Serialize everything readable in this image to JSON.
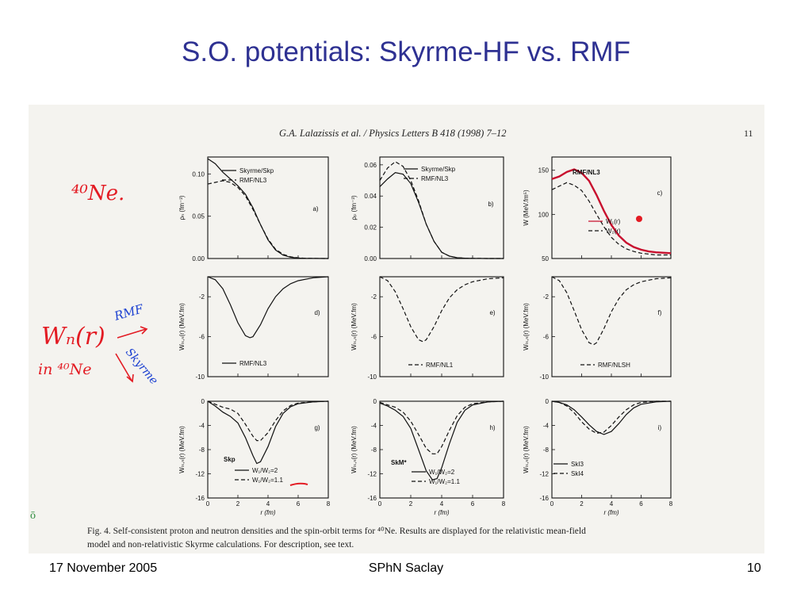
{
  "slide": {
    "title": "S.O. potentials: Skyrme-HF vs. RMF",
    "footer_left": "17 November 2005",
    "footer_center": "SPhN Saclay",
    "footer_right": "10"
  },
  "scan": {
    "header": "G.A. Lalazissis et al. / Physics Letters B 418 (1998) 7–12",
    "page_number": "11",
    "caption_line1": "Fig. 4. Self-consistent proton and neutron densities and the spin-orbit terms for ⁴⁰Ne. Results are displayed for the relativistic mean-field",
    "caption_line2": "model and non-relativistic Skyrme calculations. For description, see text.",
    "handwriting": {
      "nucleus": "⁴⁰Ne.",
      "wn": "Wₙ(r)",
      "in_ne": "in ⁴⁰Ne",
      "rmf": "RMF",
      "skyrme": "Skyrme",
      "margin_mark": "ō"
    }
  },
  "chart_data": [
    {
      "type": "line",
      "id": "a",
      "panel_label": "a)",
      "ylabel": "ρₙ (fm⁻³)",
      "xlim": [
        0,
        8
      ],
      "ylim": [
        0,
        0.12
      ],
      "yticks": [
        0.0,
        0.05,
        0.1
      ],
      "ytick_labels": [
        "0.00",
        "0.05",
        "0.10"
      ],
      "x_tick_labels_shown": false,
      "legend": [
        "Skyrme/Skp",
        "RMF/NL3"
      ],
      "series": [
        {
          "name": "Skyrme/Skp",
          "style": "solid",
          "x": [
            0,
            0.5,
            1,
            1.5,
            2,
            2.5,
            3,
            3.5,
            4,
            4.5,
            5,
            5.5,
            6,
            6.5,
            7,
            8
          ],
          "y": [
            0.118,
            0.112,
            0.102,
            0.094,
            0.086,
            0.076,
            0.06,
            0.04,
            0.022,
            0.01,
            0.004,
            0.0015,
            0.0005,
            0.0002,
            0.0001,
            0
          ]
        },
        {
          "name": "RMF/NL3",
          "style": "dashed",
          "x": [
            0,
            0.5,
            1,
            1.5,
            2,
            2.5,
            3,
            3.5,
            4,
            4.5,
            5,
            5.5,
            6,
            6.5,
            7,
            8
          ],
          "y": [
            0.088,
            0.09,
            0.092,
            0.09,
            0.084,
            0.074,
            0.058,
            0.04,
            0.023,
            0.011,
            0.005,
            0.002,
            0.0008,
            0.0003,
            0.0001,
            0
          ]
        }
      ]
    },
    {
      "type": "line",
      "id": "b",
      "panel_label": "b)",
      "ylabel": "ρₚ (fm⁻³)",
      "xlim": [
        0,
        8
      ],
      "ylim": [
        0,
        0.065
      ],
      "yticks": [
        0.0,
        0.02,
        0.04,
        0.06
      ],
      "ytick_labels": [
        "0.00",
        "0.02",
        "0.04",
        "0.06"
      ],
      "x_tick_labels_shown": false,
      "legend": [
        "Skyrme/Skp",
        "RMF/NL3"
      ],
      "series": [
        {
          "name": "Skyrme/Skp",
          "style": "solid",
          "x": [
            0,
            0.5,
            1,
            1.5,
            2,
            2.5,
            3,
            3.5,
            4,
            4.5,
            5,
            5.5,
            6,
            7,
            8
          ],
          "y": [
            0.046,
            0.051,
            0.055,
            0.054,
            0.048,
            0.036,
            0.022,
            0.011,
            0.004,
            0.0015,
            0.0005,
            0.0002,
            0.0001,
            0,
            0
          ]
        },
        {
          "name": "RMF/NL3",
          "style": "dashed",
          "x": [
            0,
            0.5,
            1,
            1.5,
            2,
            2.5,
            3,
            3.5,
            4,
            4.5,
            5,
            5.5,
            6,
            7,
            8
          ],
          "y": [
            0.05,
            0.058,
            0.062,
            0.059,
            0.05,
            0.037,
            0.022,
            0.011,
            0.004,
            0.0015,
            0.0005,
            0.0002,
            0.0001,
            0,
            0
          ]
        }
      ]
    },
    {
      "type": "line",
      "id": "c",
      "panel_label": "c)",
      "inset_title": "RMF/NL3",
      "ylabel": "W (MeV.fm⁵)",
      "xlim": [
        0,
        8
      ],
      "ylim": [
        50,
        165
      ],
      "yticks": [
        50,
        100,
        150
      ],
      "ytick_labels": [
        "50",
        "100",
        "150"
      ],
      "x_tick_labels_shown": false,
      "legend": [
        "W₁(r)",
        "W₂(r)"
      ],
      "series": [
        {
          "name": "W₁(r)",
          "style": "solid",
          "annotated_color": "#c8102e",
          "x": [
            0,
            0.5,
            1,
            1.5,
            2,
            2.5,
            3,
            3.5,
            4,
            4.5,
            5,
            5.5,
            6,
            6.5,
            7,
            8
          ],
          "y": [
            140,
            143,
            148,
            151,
            147,
            138,
            122,
            104,
            88,
            76,
            68,
            63,
            60,
            58,
            57,
            56
          ]
        },
        {
          "name": "W₂(r)",
          "style": "dashed",
          "x": [
            0,
            0.5,
            1,
            1.5,
            2,
            2.5,
            3,
            3.5,
            4,
            4.5,
            5,
            5.5,
            6,
            6.5,
            7,
            8
          ],
          "y": [
            128,
            132,
            136,
            133,
            127,
            115,
            100,
            86,
            74,
            66,
            61,
            58,
            56,
            55,
            54,
            54
          ]
        }
      ]
    },
    {
      "type": "line",
      "id": "d",
      "panel_label": "d)",
      "ylabel": "Wₗₛ,ₙ(r) (MeV.fm)",
      "xlim": [
        0,
        8
      ],
      "ylim": [
        -10,
        0
      ],
      "yticks": [
        -10,
        -6,
        -2
      ],
      "ytick_labels": [
        "-10",
        "-6",
        "-2"
      ],
      "x_tick_labels_shown": false,
      "legend": [
        "RMF/NL3"
      ],
      "series": [
        {
          "name": "RMF/NL3",
          "style": "solid",
          "x": [
            0,
            0.5,
            1,
            1.5,
            2,
            2.5,
            2.8,
            3,
            3.5,
            4,
            4.5,
            5,
            5.5,
            6,
            7,
            8
          ],
          "y": [
            0,
            -0.3,
            -1.2,
            -2.8,
            -4.6,
            -5.9,
            -6.1,
            -6.0,
            -4.8,
            -3.2,
            -2.0,
            -1.2,
            -0.7,
            -0.4,
            -0.1,
            0
          ]
        }
      ]
    },
    {
      "type": "line",
      "id": "e",
      "panel_label": "e)",
      "ylabel": "Wₗₛ,ₙ(r) (MeV.fm)",
      "xlim": [
        0,
        8
      ],
      "ylim": [
        -10,
        0
      ],
      "yticks": [
        -10,
        -6,
        -2
      ],
      "ytick_labels": [
        "-10",
        "-6",
        "-2"
      ],
      "x_tick_labels_shown": false,
      "legend": [
        "RMF/NL1"
      ],
      "series": [
        {
          "name": "RMF/NL1",
          "style": "dashed",
          "x": [
            0,
            0.5,
            1,
            1.5,
            2,
            2.5,
            2.8,
            3,
            3.5,
            4,
            4.5,
            5,
            5.5,
            6,
            7,
            8
          ],
          "y": [
            0,
            -0.4,
            -1.5,
            -3.2,
            -5.0,
            -6.3,
            -6.5,
            -6.3,
            -5.0,
            -3.4,
            -2.1,
            -1.3,
            -0.8,
            -0.5,
            -0.2,
            -0.1
          ]
        }
      ]
    },
    {
      "type": "line",
      "id": "f",
      "panel_label": "f)",
      "ylabel": "Wₗₛ,ₙ(r) (MeV.fm)",
      "xlim": [
        0,
        8
      ],
      "ylim": [
        -10,
        0
      ],
      "yticks": [
        -10,
        -6,
        -2
      ],
      "ytick_labels": [
        "-10",
        "-6",
        "-2"
      ],
      "x_tick_labels_shown": false,
      "legend": [
        "RMF/NLSH"
      ],
      "series": [
        {
          "name": "RMF/NLSH",
          "style": "dashed",
          "x": [
            0,
            0.5,
            1,
            1.5,
            2,
            2.5,
            2.8,
            3,
            3.5,
            4,
            4.5,
            5,
            5.5,
            6,
            7,
            8
          ],
          "y": [
            0,
            -0.4,
            -1.6,
            -3.4,
            -5.3,
            -6.6,
            -6.8,
            -6.6,
            -5.2,
            -3.5,
            -2.2,
            -1.3,
            -0.8,
            -0.5,
            -0.2,
            -0.1
          ]
        }
      ]
    },
    {
      "type": "line",
      "id": "g",
      "panel_label": "g)",
      "inset_title": "Skp",
      "ylabel": "Wₗₛ,ₙ(r) (MeV.fm)",
      "xlabel": "r (fm)",
      "xlim": [
        0,
        8
      ],
      "ylim": [
        -16,
        0
      ],
      "xticks": [
        0,
        2,
        4,
        6,
        8
      ],
      "xtick_labels": [
        "0",
        "2",
        "4",
        "6",
        "8"
      ],
      "yticks": [
        -16,
        -12,
        -8,
        -4,
        0
      ],
      "ytick_labels": [
        "-16",
        "-12",
        "-8",
        "-4",
        "0"
      ],
      "legend": [
        "W₁/W₂=2",
        "W₁/W₂=1.1"
      ],
      "series": [
        {
          "name": "W₁/W₂=2",
          "style": "solid",
          "x": [
            0,
            0.5,
            1,
            1.5,
            2,
            2.5,
            3,
            3.25,
            3.5,
            4,
            4.5,
            5,
            5.5,
            6,
            7,
            8
          ],
          "y": [
            0,
            -0.8,
            -1.8,
            -2.5,
            -3.6,
            -6,
            -9,
            -10.3,
            -10,
            -7.5,
            -4.2,
            -2,
            -0.9,
            -0.4,
            -0.1,
            0
          ]
        },
        {
          "name": "W₁/W₂=1.1",
          "style": "dashed",
          "x": [
            0,
            0.5,
            1,
            1.5,
            2,
            2.5,
            3,
            3.25,
            3.5,
            4,
            4.5,
            5,
            5.5,
            6,
            7,
            8
          ],
          "y": [
            0,
            -0.5,
            -1.0,
            -1.3,
            -2.0,
            -3.8,
            -5.8,
            -6.5,
            -6.5,
            -5.2,
            -3.2,
            -1.6,
            -0.7,
            -0.3,
            -0.1,
            0
          ]
        }
      ]
    },
    {
      "type": "line",
      "id": "h",
      "panel_label": "h)",
      "inset_title": "SkM*",
      "ylabel": "Wₗₛ,ₙ(r) (MeV.fm)",
      "xlabel": "r (fm)",
      "xlim": [
        0,
        8
      ],
      "ylim": [
        -16,
        0
      ],
      "xticks": [
        0,
        2,
        4,
        6,
        8
      ],
      "xtick_labels": [
        "0",
        "2",
        "4",
        "6",
        "8"
      ],
      "yticks": [
        -16,
        -12,
        -8,
        -4,
        0
      ],
      "ytick_labels": [
        "-16",
        "-12",
        "-8",
        "-4",
        "0"
      ],
      "legend": [
        "W₁/W₂=2",
        "W₁/W₂=1.1"
      ],
      "series": [
        {
          "name": "W₁/W₂=2",
          "style": "solid",
          "x": [
            0,
            0.5,
            1,
            1.5,
            2,
            2.5,
            3,
            3.4,
            3.7,
            4,
            4.5,
            5,
            5.5,
            6,
            7,
            8
          ],
          "y": [
            -0.3,
            -0.8,
            -1.5,
            -2.5,
            -4.5,
            -8,
            -11.5,
            -13,
            -12.8,
            -11,
            -7,
            -3.5,
            -1.5,
            -0.6,
            -0.1,
            0
          ]
        },
        {
          "name": "W₁/W₂=1.1",
          "style": "dashed",
          "x": [
            0,
            0.5,
            1,
            1.5,
            2,
            2.5,
            3,
            3.4,
            3.7,
            4,
            4.5,
            5,
            5.5,
            6,
            7,
            8
          ],
          "y": [
            -0.2,
            -0.6,
            -1.0,
            -1.8,
            -3.3,
            -5.5,
            -7.8,
            -8.7,
            -8.7,
            -7.5,
            -4.8,
            -2.4,
            -1.0,
            -0.4,
            -0.1,
            0
          ]
        }
      ]
    },
    {
      "type": "line",
      "id": "i",
      "panel_label": "i)",
      "ylabel": "Wₗₛ,ₙ(r) (MeV.fm)",
      "xlabel": "r (fm)",
      "xlim": [
        0,
        8
      ],
      "ylim": [
        -16,
        0
      ],
      "xticks": [
        0,
        2,
        4,
        6,
        8
      ],
      "xtick_labels": [
        "0",
        "2",
        "4",
        "6",
        "8"
      ],
      "yticks": [
        -16,
        -12,
        -8,
        -4,
        0
      ],
      "ytick_labels": [
        "-16",
        "-12",
        "-8",
        "-4",
        "0"
      ],
      "legend": [
        "SkI3",
        "SkI4"
      ],
      "series": [
        {
          "name": "SkI3",
          "style": "solid",
          "x": [
            0,
            0.5,
            1,
            1.5,
            2,
            2.5,
            3,
            3.5,
            4,
            4.5,
            5,
            5.5,
            6,
            7,
            8
          ],
          "y": [
            0,
            -0.2,
            -0.6,
            -1.4,
            -2.6,
            -3.9,
            -5.0,
            -5.5,
            -5.0,
            -3.7,
            -2.2,
            -1.1,
            -0.5,
            -0.1,
            0
          ]
        },
        {
          "name": "SkI4",
          "style": "dashed",
          "x": [
            0,
            0.5,
            1,
            1.5,
            2,
            2.5,
            3,
            3.5,
            4,
            4.5,
            5,
            5.5,
            6,
            7,
            8
          ],
          "y": [
            0,
            -0.2,
            -0.8,
            -1.9,
            -3.4,
            -4.6,
            -5.3,
            -5.1,
            -4.0,
            -2.6,
            -1.4,
            -0.6,
            -0.2,
            0,
            0
          ]
        }
      ]
    }
  ]
}
